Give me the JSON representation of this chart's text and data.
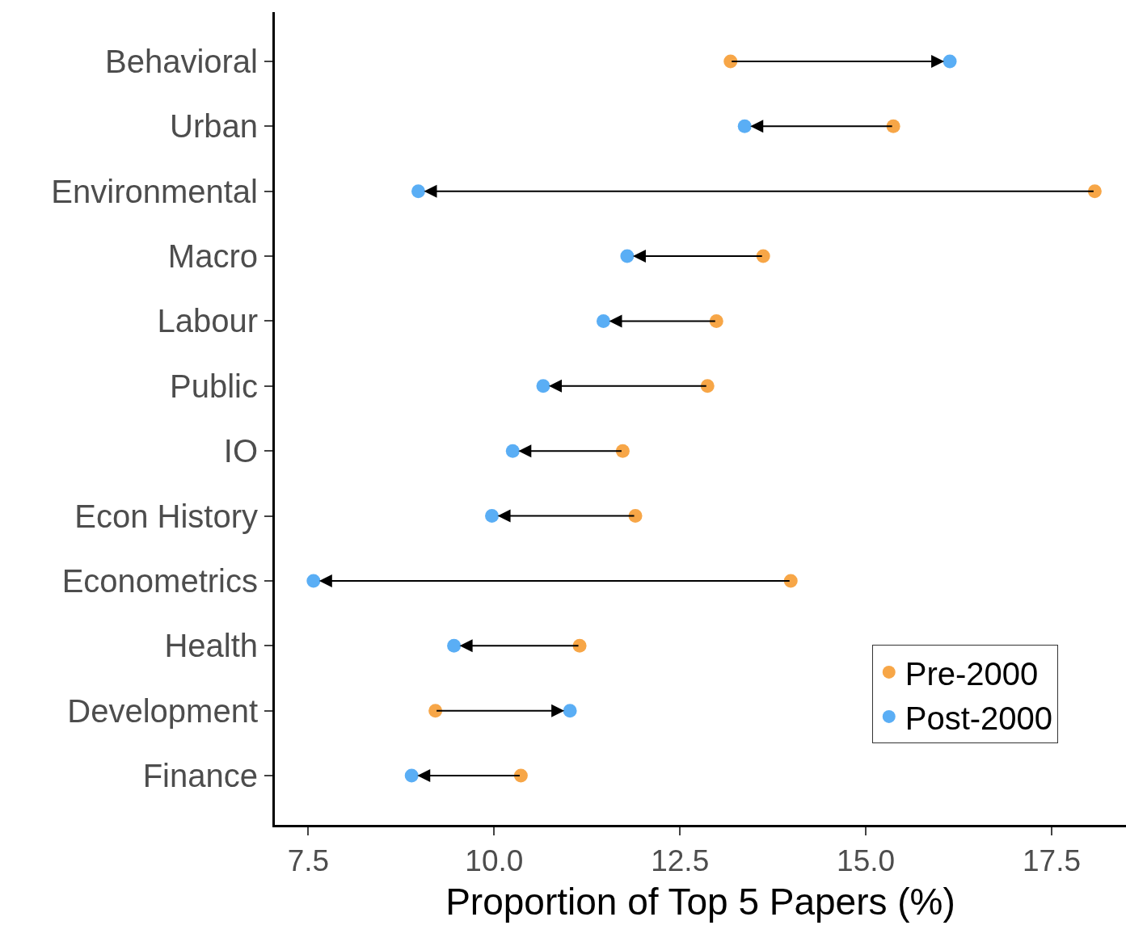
{
  "chart_data": {
    "type": "scatter",
    "xlabel": "Proportion of Top 5 Papers (%)",
    "categories": [
      "Behavioral",
      "Urban",
      "Environmental",
      "Macro",
      "Labour",
      "Public",
      "IO",
      "Econ History",
      "Econometrics",
      "Health",
      "Development",
      "Finance"
    ],
    "orientation": "horizontal",
    "series": [
      {
        "name": "Pre-2000",
        "color": "#f7a647",
        "values": [
          13.18,
          15.37,
          18.08,
          13.62,
          12.99,
          12.87,
          11.73,
          11.9,
          13.99,
          11.15,
          9.21,
          10.36
        ]
      },
      {
        "name": "Post-2000",
        "color": "#5aaef5",
        "values": [
          16.13,
          13.37,
          8.98,
          11.79,
          11.47,
          10.66,
          10.25,
          9.97,
          7.57,
          9.46,
          11.02,
          8.89
        ]
      }
    ],
    "xlim": [
      7.05,
      18.5
    ],
    "xticks": [
      {
        "value": 7.5,
        "label": "7.5"
      },
      {
        "value": 10,
        "label": "10.0"
      },
      {
        "value": 12.5,
        "label": "12.5"
      },
      {
        "value": 15,
        "label": "15.0"
      },
      {
        "value": 17.5,
        "label": "17.5"
      }
    ],
    "legend": "bottom right",
    "marker": "circle"
  }
}
